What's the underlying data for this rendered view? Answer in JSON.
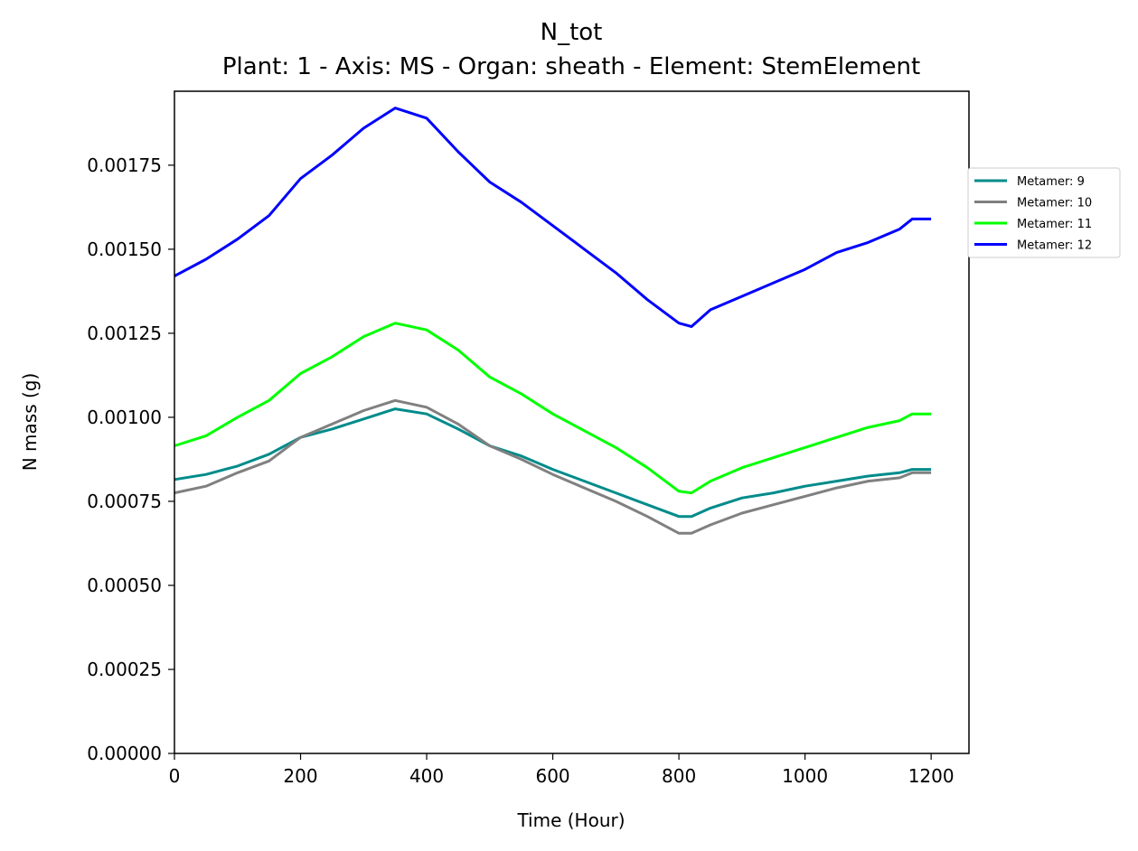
{
  "chart_data": {
    "type": "line",
    "title": "N_tot",
    "subtitle": "Plant: 1 - Axis: MS - Organ: sheath - Element: StemElement",
    "xlabel": "Time (Hour)",
    "ylabel": "N mass (g)",
    "xlim": [
      0,
      1260
    ],
    "ylim": [
      0,
      0.00197
    ],
    "xticks": [
      0,
      200,
      400,
      600,
      800,
      1000,
      1200
    ],
    "xtick_labels": [
      "0",
      "200",
      "400",
      "600",
      "800",
      "1000",
      "1200"
    ],
    "yticks": [
      0,
      0.00025,
      0.0005,
      0.00075,
      0.001,
      0.00125,
      0.0015,
      0.00175
    ],
    "ytick_labels": [
      "0.00000",
      "0.00025",
      "0.00050",
      "0.00075",
      "0.00100",
      "0.00125",
      "0.00150",
      "0.00175"
    ],
    "grid": false,
    "legend_position": "outside right, upper",
    "series": [
      {
        "name": "Metamer: 9",
        "color": "#008b8b",
        "points": [
          [
            0,
            0.000815
          ],
          [
            50,
            0.00083
          ],
          [
            100,
            0.000855
          ],
          [
            150,
            0.00089
          ],
          [
            200,
            0.00094
          ],
          [
            250,
            0.000965
          ],
          [
            300,
            0.000995
          ],
          [
            350,
            0.001025
          ],
          [
            400,
            0.00101
          ],
          [
            450,
            0.000965
          ],
          [
            500,
            0.000915
          ],
          [
            550,
            0.000885
          ],
          [
            600,
            0.000845
          ],
          [
            650,
            0.00081
          ],
          [
            700,
            0.000775
          ],
          [
            750,
            0.00074
          ],
          [
            800,
            0.000705
          ],
          [
            820,
            0.000705
          ],
          [
            850,
            0.00073
          ],
          [
            900,
            0.00076
          ],
          [
            950,
            0.000775
          ],
          [
            1000,
            0.000795
          ],
          [
            1050,
            0.00081
          ],
          [
            1100,
            0.000825
          ],
          [
            1150,
            0.000835
          ],
          [
            1170,
            0.000845
          ],
          [
            1200,
            0.000845
          ]
        ]
      },
      {
        "name": "Metamer: 10",
        "color": "#808080",
        "points": [
          [
            0,
            0.000775
          ],
          [
            50,
            0.000795
          ],
          [
            100,
            0.000835
          ],
          [
            150,
            0.00087
          ],
          [
            200,
            0.00094
          ],
          [
            250,
            0.00098
          ],
          [
            300,
            0.00102
          ],
          [
            350,
            0.00105
          ],
          [
            400,
            0.00103
          ],
          [
            450,
            0.00098
          ],
          [
            500,
            0.000915
          ],
          [
            550,
            0.000875
          ],
          [
            600,
            0.00083
          ],
          [
            650,
            0.00079
          ],
          [
            700,
            0.00075
          ],
          [
            750,
            0.000705
          ],
          [
            800,
            0.000655
          ],
          [
            820,
            0.000655
          ],
          [
            850,
            0.00068
          ],
          [
            900,
            0.000715
          ],
          [
            950,
            0.00074
          ],
          [
            1000,
            0.000765
          ],
          [
            1050,
            0.00079
          ],
          [
            1100,
            0.00081
          ],
          [
            1150,
            0.00082
          ],
          [
            1170,
            0.000835
          ],
          [
            1200,
            0.000835
          ]
        ]
      },
      {
        "name": "Metamer: 11",
        "color": "#00ff00",
        "points": [
          [
            0,
            0.000915
          ],
          [
            50,
            0.000945
          ],
          [
            100,
            0.001
          ],
          [
            150,
            0.00105
          ],
          [
            200,
            0.00113
          ],
          [
            250,
            0.00118
          ],
          [
            300,
            0.00124
          ],
          [
            350,
            0.00128
          ],
          [
            400,
            0.00126
          ],
          [
            450,
            0.0012
          ],
          [
            500,
            0.00112
          ],
          [
            550,
            0.00107
          ],
          [
            600,
            0.00101
          ],
          [
            650,
            0.00096
          ],
          [
            700,
            0.00091
          ],
          [
            750,
            0.00085
          ],
          [
            800,
            0.00078
          ],
          [
            820,
            0.000775
          ],
          [
            850,
            0.00081
          ],
          [
            900,
            0.00085
          ],
          [
            950,
            0.00088
          ],
          [
            1000,
            0.00091
          ],
          [
            1050,
            0.00094
          ],
          [
            1100,
            0.00097
          ],
          [
            1150,
            0.00099
          ],
          [
            1170,
            0.00101
          ],
          [
            1200,
            0.00101
          ]
        ]
      },
      {
        "name": "Metamer: 12",
        "color": "#0000ff",
        "points": [
          [
            0,
            0.00142
          ],
          [
            50,
            0.00147
          ],
          [
            100,
            0.00153
          ],
          [
            150,
            0.0016
          ],
          [
            200,
            0.00171
          ],
          [
            250,
            0.00178
          ],
          [
            300,
            0.00186
          ],
          [
            350,
            0.00192
          ],
          [
            400,
            0.00189
          ],
          [
            450,
            0.00179
          ],
          [
            500,
            0.0017
          ],
          [
            550,
            0.00164
          ],
          [
            600,
            0.00157
          ],
          [
            650,
            0.0015
          ],
          [
            700,
            0.00143
          ],
          [
            750,
            0.00135
          ],
          [
            800,
            0.00128
          ],
          [
            820,
            0.00127
          ],
          [
            850,
            0.00132
          ],
          [
            900,
            0.00136
          ],
          [
            950,
            0.0014
          ],
          [
            1000,
            0.00144
          ],
          [
            1050,
            0.00149
          ],
          [
            1100,
            0.00152
          ],
          [
            1150,
            0.00156
          ],
          [
            1170,
            0.00159
          ],
          [
            1200,
            0.00159
          ]
        ]
      }
    ]
  }
}
